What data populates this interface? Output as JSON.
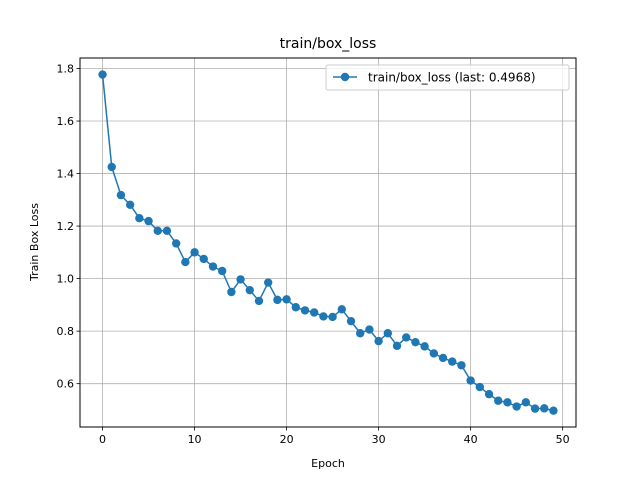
{
  "chart_data": {
    "type": "line",
    "title": "train/box_loss",
    "xlabel": "Epoch",
    "ylabel": "Train Box Loss",
    "xlim": [
      -2.45,
      51.45
    ],
    "ylim": [
      0.435,
      1.84
    ],
    "xticks": [
      0,
      10,
      20,
      30,
      40,
      50
    ],
    "yticks": [
      0.6,
      0.8,
      1.0,
      1.2,
      1.4,
      1.6,
      1.8
    ],
    "xtick_labels": [
      "0",
      "10",
      "20",
      "30",
      "40",
      "50"
    ],
    "ytick_labels": [
      "0.6",
      "0.8",
      "1.0",
      "1.2",
      "1.4",
      "1.6",
      "1.8"
    ],
    "grid": true,
    "legend_position": "top-right",
    "color": "#1f77b4",
    "series": [
      {
        "name": "train/box_loss (last: 0.4968)",
        "x": [
          0,
          1,
          2,
          3,
          4,
          5,
          6,
          7,
          8,
          9,
          10,
          11,
          12,
          13,
          14,
          15,
          16,
          17,
          18,
          19,
          20,
          21,
          22,
          23,
          24,
          25,
          26,
          27,
          28,
          29,
          30,
          31,
          32,
          33,
          34,
          35,
          36,
          37,
          38,
          39,
          40,
          41,
          42,
          43,
          44,
          45,
          46,
          47,
          48,
          49
        ],
        "y": [
          1.777,
          1.425,
          1.318,
          1.281,
          1.23,
          1.219,
          1.182,
          1.182,
          1.134,
          1.063,
          1.1,
          1.075,
          1.046,
          1.029,
          0.949,
          0.997,
          0.956,
          0.915,
          0.985,
          0.919,
          0.921,
          0.891,
          0.879,
          0.871,
          0.856,
          0.854,
          0.883,
          0.838,
          0.792,
          0.806,
          0.762,
          0.792,
          0.744,
          0.776,
          0.758,
          0.742,
          0.715,
          0.698,
          0.684,
          0.67,
          0.612,
          0.587,
          0.56,
          0.535,
          0.529,
          0.513,
          0.529,
          0.505,
          0.506,
          0.497
        ]
      }
    ]
  }
}
